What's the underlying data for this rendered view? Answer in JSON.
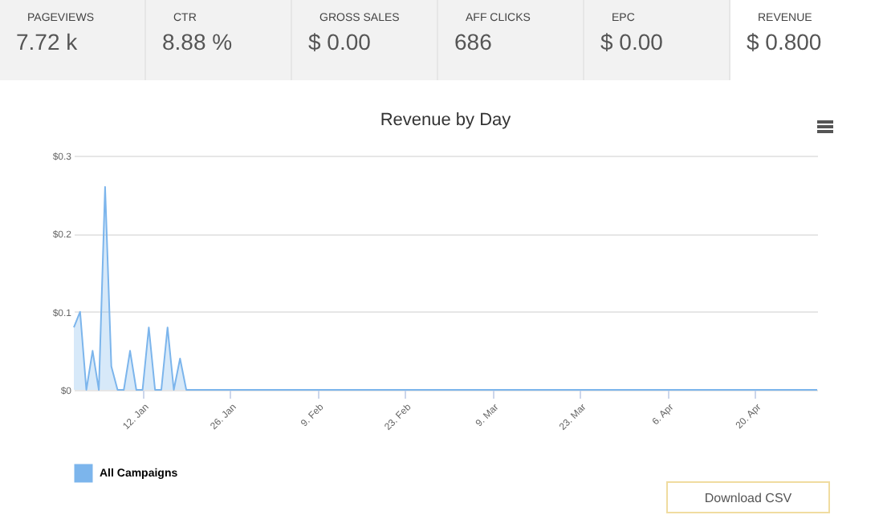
{
  "chart_data": [
    {
      "type": "other",
      "categories": [
        "PAGEVIEWS",
        "CTR",
        "GROSS SALES",
        "AFF CLICKS",
        "EPC",
        "REVENUE"
      ],
      "annotations": [
        "7.72 k",
        "8.88 %",
        "$ 0.00",
        "686",
        "$ 0.00",
        "$ 0.800"
      ]
    },
    {
      "type": "area",
      "title": "Revenue by Day",
      "series": [
        {
          "name": "All Campaigns",
          "color": "#7cb5ec",
          "x": [
            "--01-01",
            "--01-02",
            "--01-03",
            "--01-04",
            "--01-05",
            "--01-06",
            "--01-07",
            "--01-08",
            "--01-09",
            "--01-10",
            "--01-11",
            "--01-12",
            "--01-13",
            "--01-14",
            "--01-15",
            "--01-16",
            "--01-17",
            "--01-18",
            "--01-19",
            "--04-30"
          ],
          "values": [
            0.08,
            0.1,
            0,
            0.05,
            0,
            0.26,
            0.03,
            0,
            0,
            0.05,
            0,
            0,
            0.08,
            0,
            0,
            0.08,
            0,
            0.04,
            0,
            0
          ]
        }
      ],
      "xlim": [
        "--01-01",
        "--04-30"
      ],
      "xticks": [
        {
          "value": "--01-12",
          "label": "12. Jan"
        },
        {
          "value": "--01-26",
          "label": "26. Jan"
        },
        {
          "value": "--02-09",
          "label": "9. Feb"
        },
        {
          "value": "--02-23",
          "label": "23. Feb"
        },
        {
          "value": "--03-09",
          "label": "9. Mar"
        },
        {
          "value": "--03-23",
          "label": "23. Mar"
        },
        {
          "value": "--04-06",
          "label": "6. Apr"
        },
        {
          "value": "--04-20",
          "label": "20. Apr"
        }
      ],
      "ylim": [
        0,
        0.3
      ],
      "yticks": [
        {
          "value": 0,
          "label": "$0"
        },
        {
          "value": 0.1,
          "label": "$0.1"
        },
        {
          "value": 0.2,
          "label": "$0.2"
        },
        {
          "value": 0.3,
          "label": "$0.3"
        }
      ],
      "grid": "y",
      "legend": "bottom left",
      "annotations": [
        "Download CSV"
      ]
    }
  ]
}
